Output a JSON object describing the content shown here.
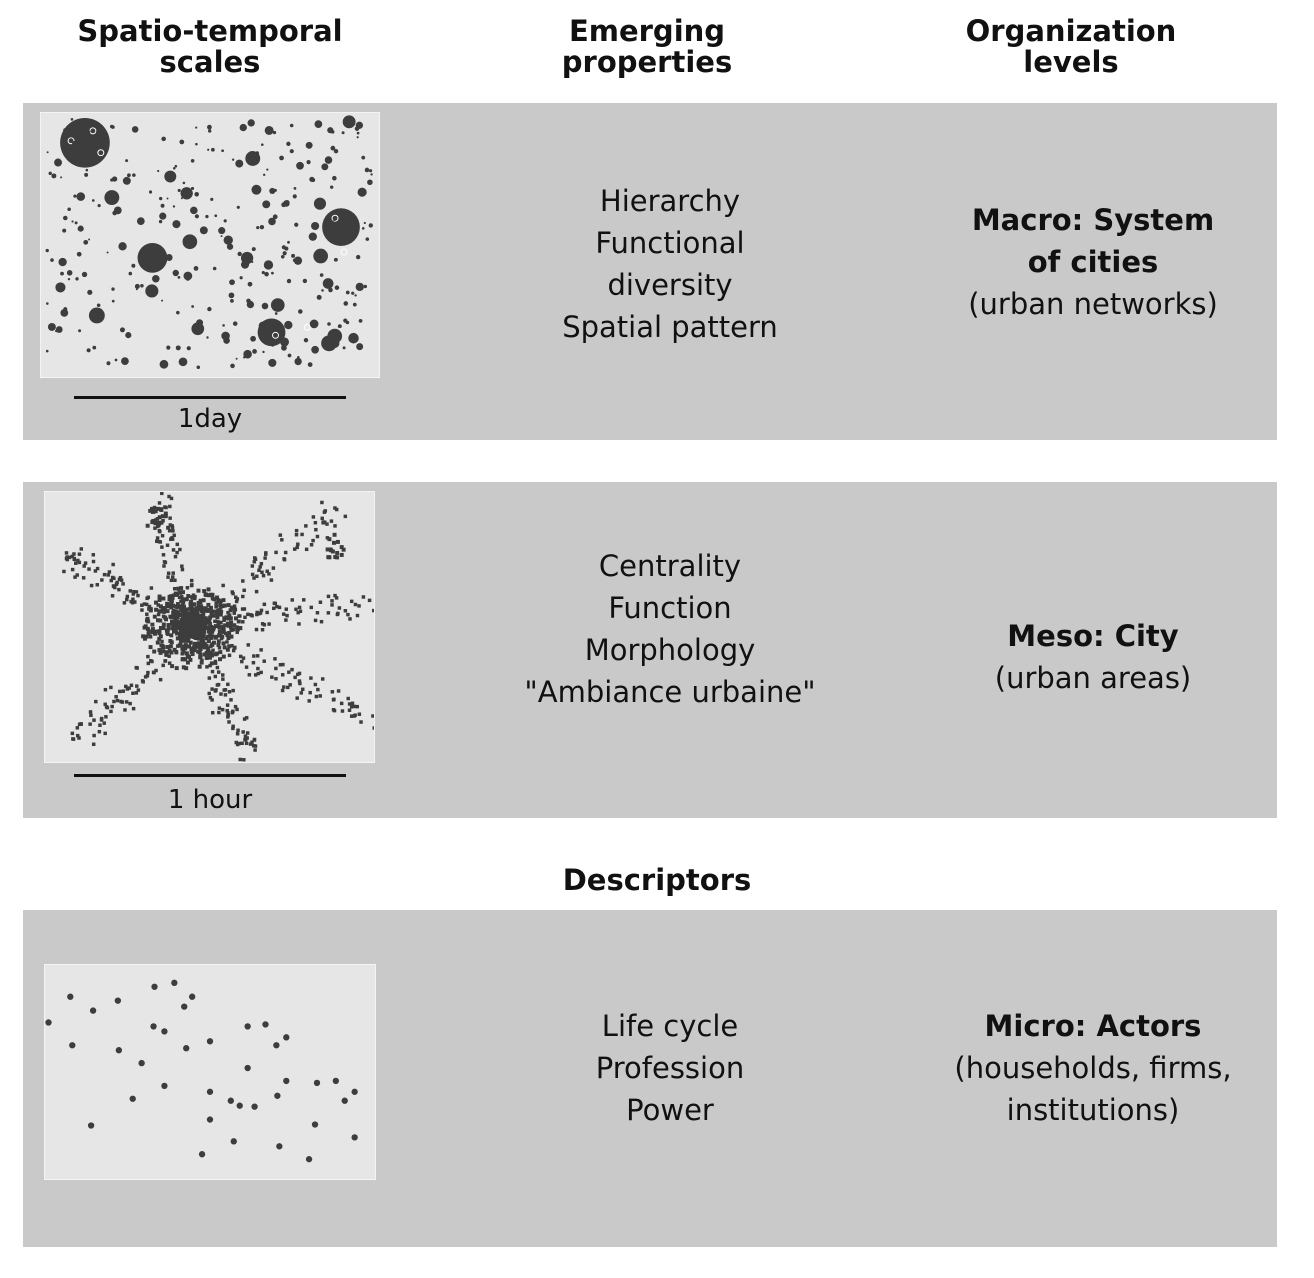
{
  "headers": {
    "col1": [
      "Spatio-temporal",
      "scales"
    ],
    "col2": [
      "Emerging",
      "properties"
    ],
    "col3": [
      "Organization",
      "levels"
    ]
  },
  "rows": [
    {
      "id": "macro",
      "scale_label": "1day",
      "properties": [
        "Hierarchy",
        "Functional",
        "diversity",
        "Spatial pattern"
      ],
      "level_title": [
        "Macro: System",
        "of cities"
      ],
      "level_subtitle": [
        "(urban networks)"
      ]
    },
    {
      "id": "meso",
      "scale_label": "1 hour",
      "properties": [
        "Centrality",
        "Function",
        "Morphology",
        "\"Ambiance urbaine\""
      ],
      "level_title": [
        "Meso: City"
      ],
      "level_subtitle": [
        "(urban areas)"
      ]
    },
    {
      "id": "micro",
      "scale_label": "",
      "properties": [
        "Life cycle",
        "Profession",
        "Power"
      ],
      "level_title": [
        "Micro: Actors"
      ],
      "level_subtitle": [
        "(households, firms,",
        "institutions)"
      ]
    }
  ],
  "descriptors_label": "Descriptors",
  "colors": {
    "band": "#c9c9c9",
    "panel": "#e6e6e6",
    "dots": "#3d3d3d"
  }
}
